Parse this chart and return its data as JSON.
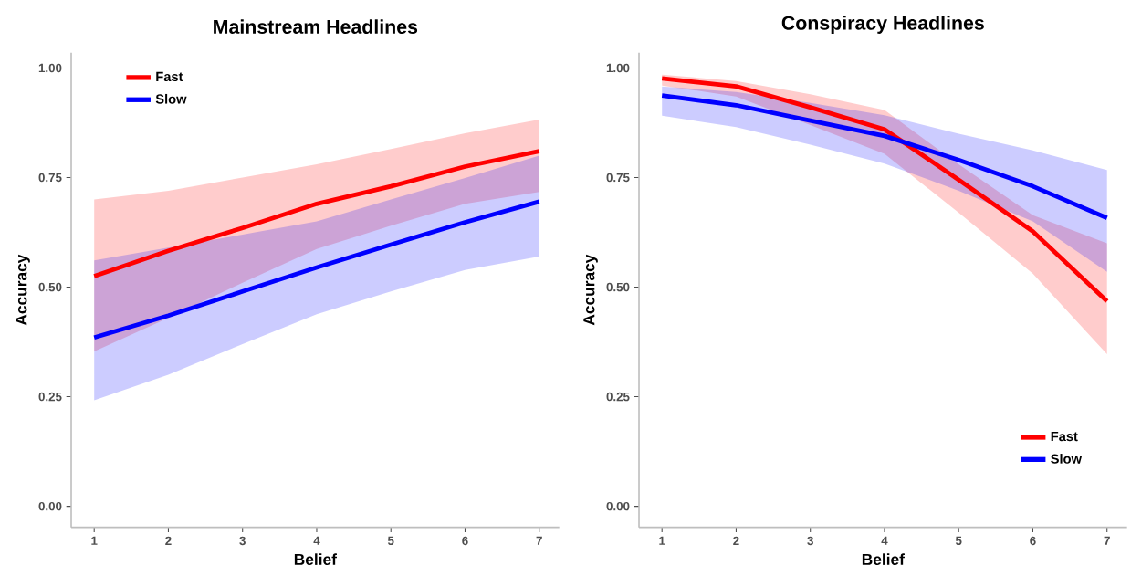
{
  "chart_data": [
    {
      "type": "line",
      "title": "Mainstream Headlines",
      "xlabel": "Belief",
      "ylabel": "Accuracy",
      "xlim": [
        0.69,
        7.27
      ],
      "ylim": [
        -0.048,
        1.035
      ],
      "xticks": [
        1,
        2,
        3,
        4,
        5,
        6,
        7
      ],
      "yticks": [
        {
          "value": 0,
          "label": "0.00"
        },
        {
          "value": 0.25,
          "label": "0.25"
        },
        {
          "value": 0.5,
          "label": "0.50"
        },
        {
          "value": 0.75,
          "label": "0.75"
        },
        {
          "value": 1,
          "label": "1.00"
        }
      ],
      "legend": "top left",
      "x": [
        1,
        2,
        3,
        4,
        5,
        6,
        7
      ],
      "series": [
        {
          "name": "Fast",
          "color": "#ff0000",
          "values": [
            0.525,
            0.583,
            0.635,
            0.69,
            0.73,
            0.775,
            0.81
          ],
          "lower": [
            0.353,
            0.43,
            0.51,
            0.587,
            0.64,
            0.69,
            0.717
          ],
          "upper": [
            0.7,
            0.72,
            0.75,
            0.78,
            0.815,
            0.851,
            0.882
          ]
        },
        {
          "name": "Slow",
          "color": "#0000ff",
          "values": [
            0.385,
            0.435,
            0.49,
            0.545,
            0.597,
            0.648,
            0.695
          ],
          "lower": [
            0.242,
            0.3,
            0.37,
            0.438,
            0.49,
            0.539,
            0.57
          ],
          "upper": [
            0.561,
            0.59,
            0.62,
            0.65,
            0.7,
            0.749,
            0.8
          ]
        }
      ]
    },
    {
      "type": "line",
      "title": "Conspiracy Headlines",
      "xlabel": "Belief",
      "ylabel": "Accuracy",
      "xlim": [
        0.69,
        7.27
      ],
      "ylim": [
        -0.048,
        1.035
      ],
      "xticks": [
        1,
        2,
        3,
        4,
        5,
        6,
        7
      ],
      "yticks": [
        {
          "value": 0,
          "label": "0.00"
        },
        {
          "value": 0.25,
          "label": "0.25"
        },
        {
          "value": 0.5,
          "label": "0.50"
        },
        {
          "value": 0.75,
          "label": "0.75"
        },
        {
          "value": 1,
          "label": "1.00"
        }
      ],
      "legend": "bottom right",
      "x": [
        1,
        2,
        3,
        4,
        5,
        6,
        7
      ],
      "series": [
        {
          "name": "Fast",
          "color": "#ff0000",
          "values": [
            0.976,
            0.958,
            0.91,
            0.86,
            0.745,
            0.627,
            0.468
          ],
          "lower": [
            0.96,
            0.935,
            0.87,
            0.804,
            0.67,
            0.531,
            0.347
          ],
          "upper": [
            0.985,
            0.97,
            0.94,
            0.904,
            0.78,
            0.664,
            0.6
          ]
        },
        {
          "name": "Slow",
          "color": "#0000ff",
          "values": [
            0.937,
            0.915,
            0.88,
            0.845,
            0.79,
            0.73,
            0.658
          ],
          "lower": [
            0.891,
            0.865,
            0.825,
            0.782,
            0.72,
            0.65,
            0.535
          ],
          "upper": [
            0.958,
            0.945,
            0.92,
            0.892,
            0.85,
            0.812,
            0.767
          ]
        }
      ]
    }
  ]
}
